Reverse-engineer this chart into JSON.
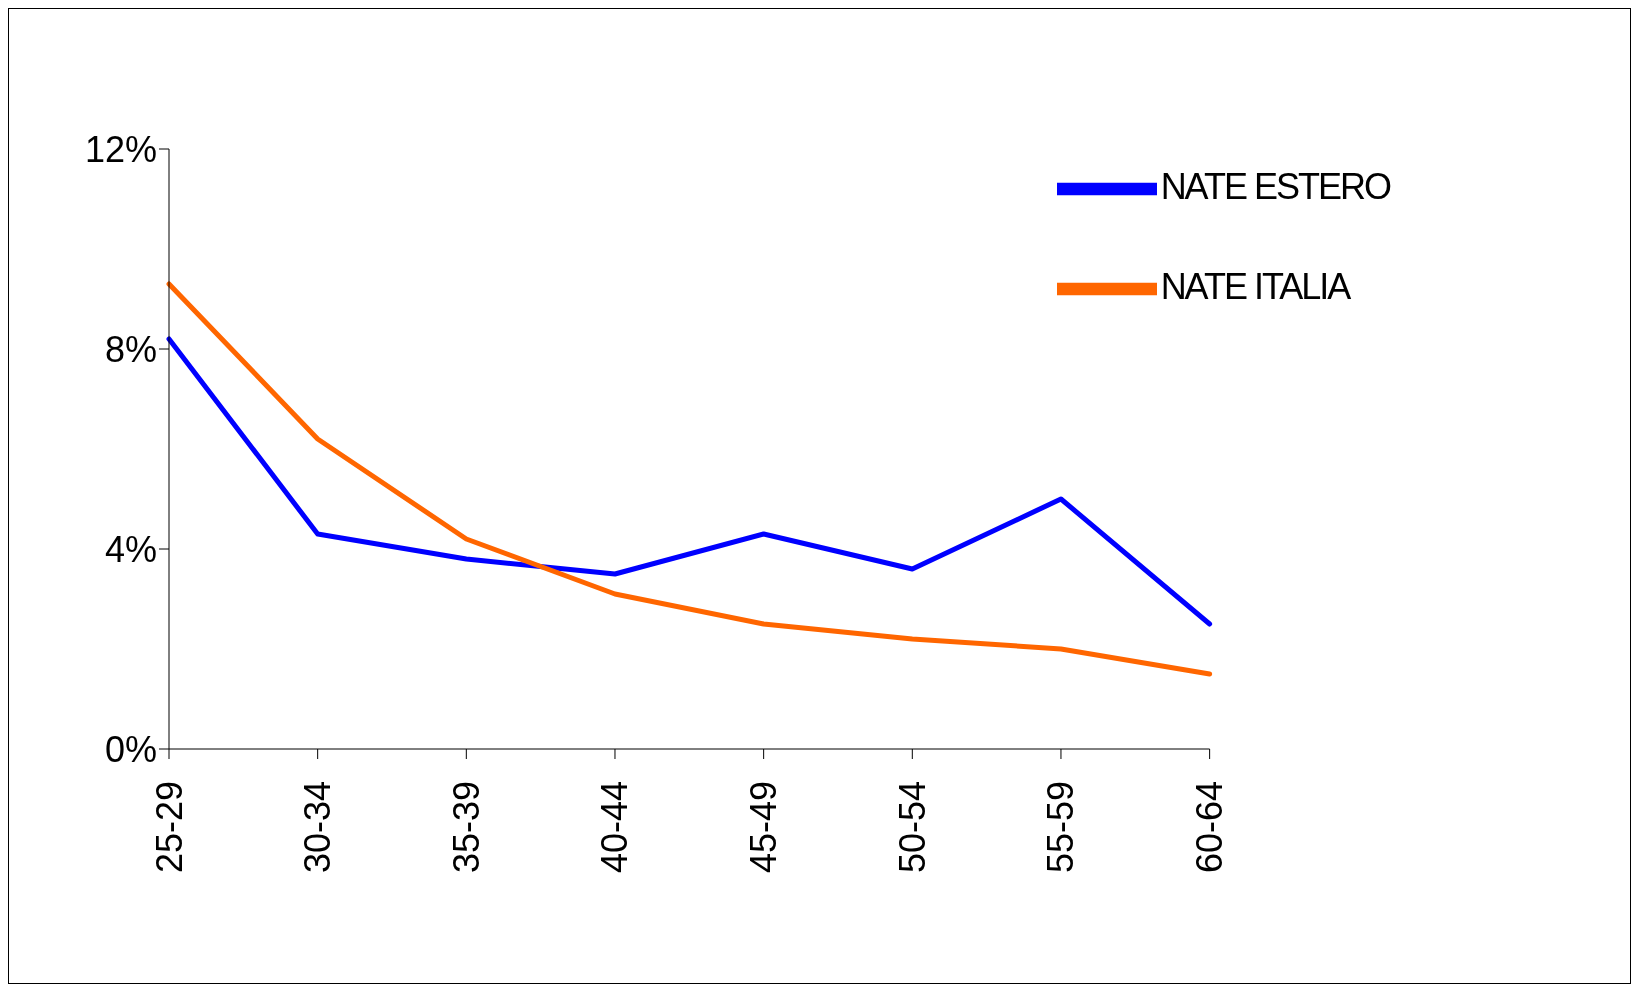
{
  "chart_data": {
    "type": "line",
    "categories": [
      "25-29",
      "30-34",
      "35-39",
      "40-44",
      "45-49",
      "50-54",
      "55-59",
      "60-64"
    ],
    "series": [
      {
        "name": "NATE ESTERO",
        "color": "#0000ff",
        "values": [
          8.2,
          4.3,
          3.8,
          3.5,
          4.3,
          3.6,
          5.0,
          2.5
        ]
      },
      {
        "name": "NATE ITALIA",
        "color": "#ff6600",
        "values": [
          9.3,
          6.2,
          4.2,
          3.1,
          2.5,
          2.2,
          2.0,
          1.5
        ]
      }
    ],
    "ylim": [
      0,
      12
    ],
    "yticks": [
      {
        "value": 0,
        "label": "0%"
      },
      {
        "value": 4,
        "label": "4%"
      },
      {
        "value": 8,
        "label": "8%"
      },
      {
        "value": 12,
        "label": "12%"
      }
    ],
    "grid": false,
    "legend": "top right",
    "marker": "none",
    "line_style": "solid"
  }
}
